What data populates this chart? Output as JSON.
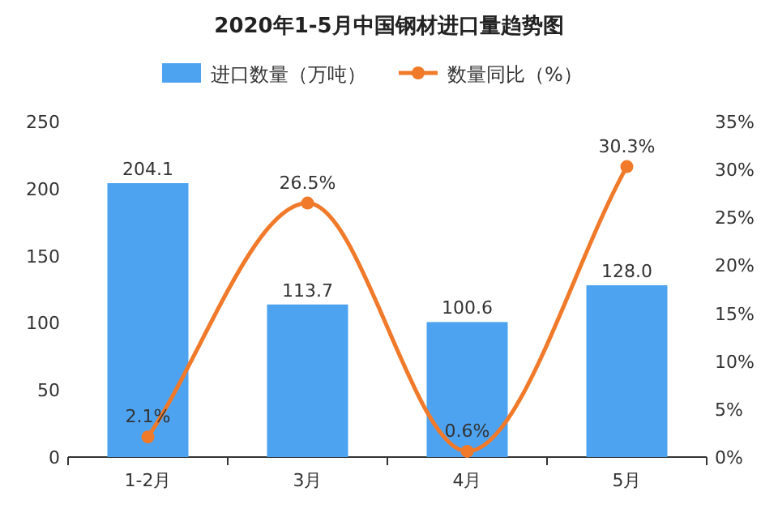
{
  "chart_data": {
    "type": "bar",
    "title": "2020年1-5月中国钢材进口量趋势图",
    "categories": [
      "1-2月",
      "3月",
      "4月",
      "5月"
    ],
    "series": [
      {
        "name": "进口数量（万吨）",
        "color": "#4da3f0",
        "values": [
          204.1,
          113.7,
          100.6,
          128.0
        ],
        "value_labels": [
          "204.1",
          "113.7",
          "100.6",
          "128.0"
        ]
      },
      {
        "name": "数量同比（%）",
        "type": "line",
        "axis": "y2",
        "color": "#f07a2a",
        "values": [
          2.1,
          26.5,
          0.6,
          30.3
        ],
        "value_labels": [
          "2.1%",
          "26.5%",
          "0.6%",
          "30.3%"
        ]
      }
    ],
    "marker": "circle",
    "legend": "top",
    "ylim": [
      0,
      250
    ],
    "yticks": [
      0,
      50,
      100,
      150,
      200,
      250
    ],
    "y2lim": [
      0,
      35
    ],
    "y2ticks": [
      {
        "value": 0,
        "label": "0%"
      },
      {
        "value": 5,
        "label": "5%"
      },
      {
        "value": 10,
        "label": "10%"
      },
      {
        "value": 15,
        "label": "15%"
      },
      {
        "value": 20,
        "label": "20%"
      },
      {
        "value": 25,
        "label": "25%"
      },
      {
        "value": 30,
        "label": "30%"
      },
      {
        "value": 35,
        "label": "35%"
      }
    ]
  }
}
